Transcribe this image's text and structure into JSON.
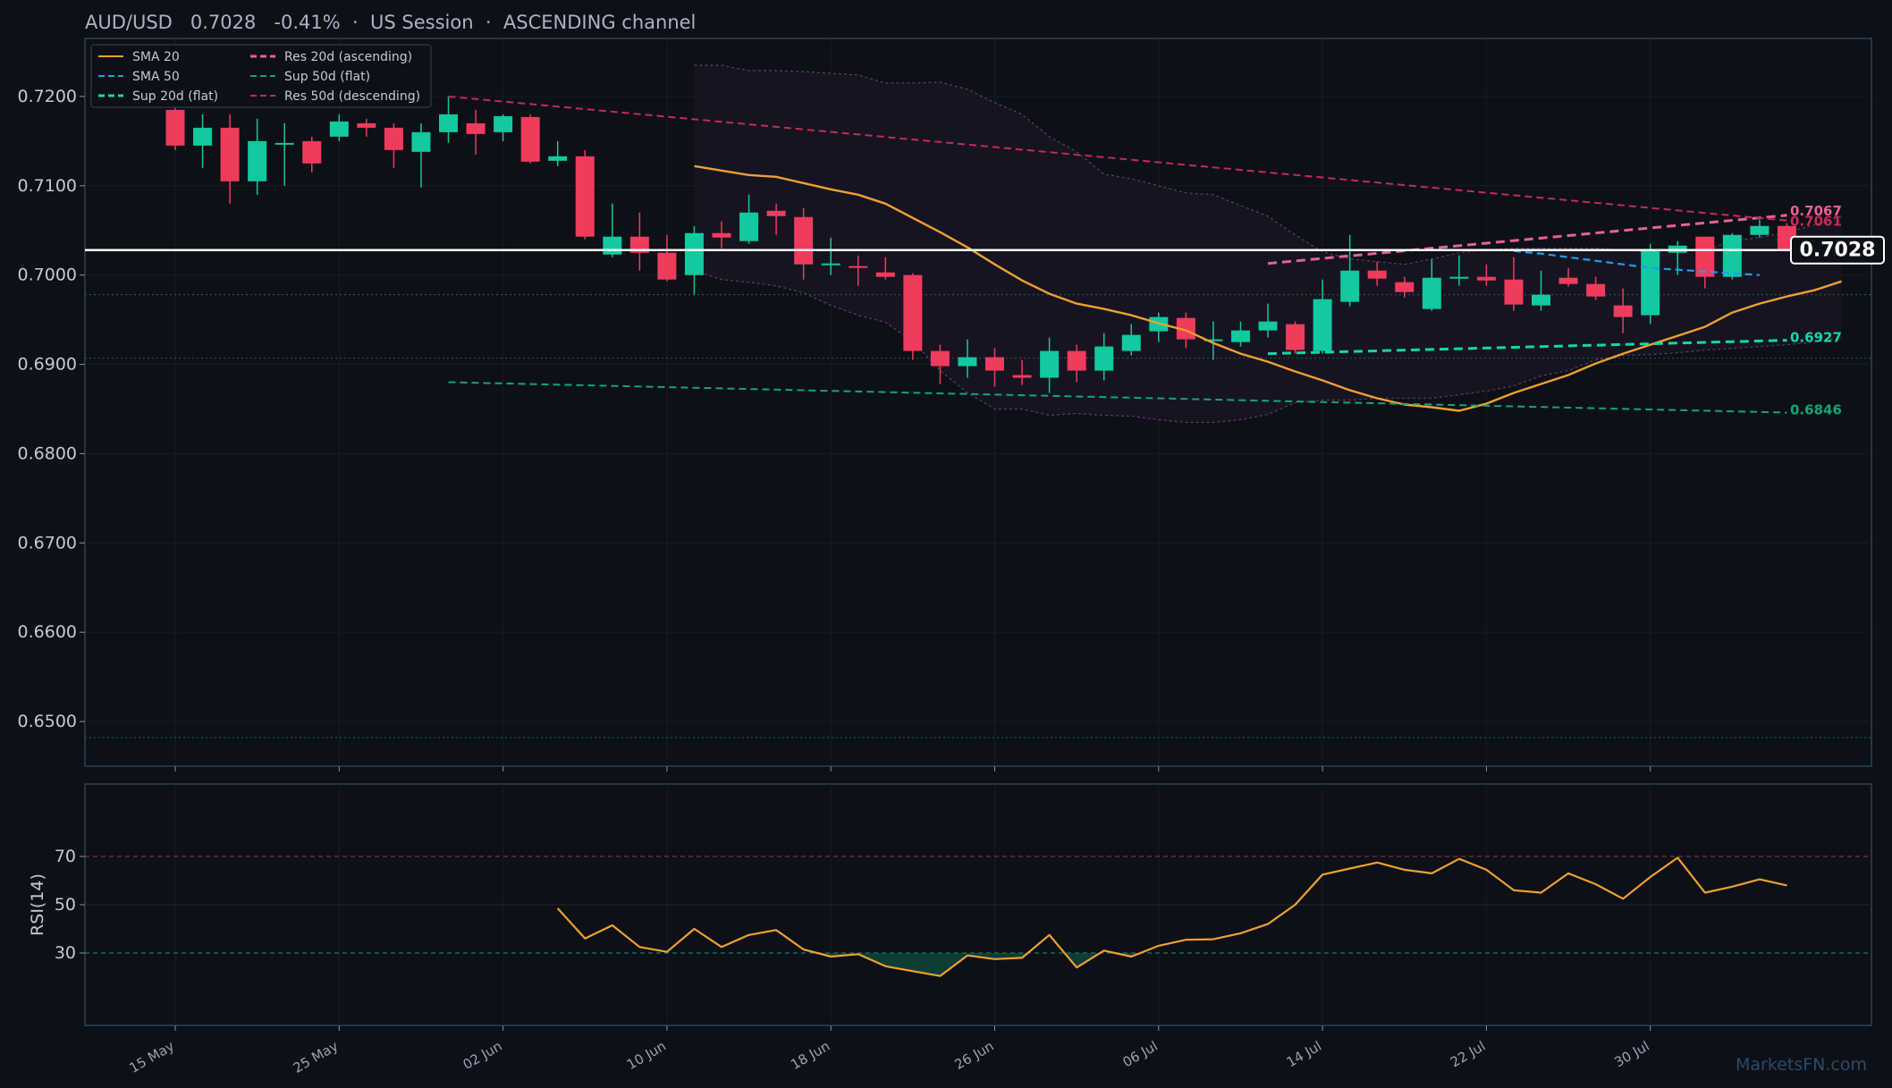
{
  "header": {
    "symbol": "AUD/USD",
    "price": "0.7028",
    "change": "-0.41%",
    "session": "US Session",
    "channel": "ASCENDING channel",
    "title": "AUD/USD   0.7028   -0.41%  ·  US Session  ·  ASCENDING channel"
  },
  "watermark": "MarketsFN.com",
  "colors": {
    "background": "#0d1017",
    "up": "#12c9a0",
    "down": "#ef3b5c",
    "sma20": "#f0a030",
    "sma50": "#1e9ef0",
    "res20": "#e8609a",
    "sup20": "#12d8a8",
    "sup50": "#12a678",
    "res50": "#c42a5a",
    "frame": "#2a4258",
    "last_price_line": "#ffffff"
  },
  "chart_data": [
    {
      "type": "candlestick",
      "title": "AUD/USD   0.7028   -0.41%  ·  US Session  ·  ASCENDING channel",
      "ylim": [
        0.645,
        0.7265
      ],
      "yticks": [
        0.65,
        0.66,
        0.67,
        0.68,
        0.69,
        0.7,
        0.71,
        0.72
      ],
      "ytick_labels": [
        "0.6500",
        "0.6600",
        "0.6700",
        "0.6800",
        "0.6900",
        "0.7000",
        "0.7100",
        "0.7200"
      ],
      "xticks": [
        "15 May",
        "25 May",
        "02 Jun",
        "10 Jun",
        "18 Jun",
        "26 Jun",
        "06 Jul",
        "14 Jul",
        "22 Jul",
        "30 Jul"
      ],
      "candles": [
        {
          "o": 0.7185,
          "h": 0.7215,
          "l": 0.714,
          "c": 0.7145
        },
        {
          "o": 0.7145,
          "h": 0.718,
          "l": 0.712,
          "c": 0.7165
        },
        {
          "o": 0.7165,
          "h": 0.718,
          "l": 0.708,
          "c": 0.7105
        },
        {
          "o": 0.7105,
          "h": 0.7175,
          "l": 0.709,
          "c": 0.715
        },
        {
          "o": 0.7148,
          "h": 0.717,
          "l": 0.71,
          "c": 0.7148
        },
        {
          "o": 0.715,
          "h": 0.7155,
          "l": 0.7115,
          "c": 0.7125
        },
        {
          "o": 0.7155,
          "h": 0.718,
          "l": 0.715,
          "c": 0.7172
        },
        {
          "o": 0.717,
          "h": 0.7175,
          "l": 0.7155,
          "c": 0.7165
        },
        {
          "o": 0.7165,
          "h": 0.717,
          "l": 0.712,
          "c": 0.714
        },
        {
          "o": 0.7138,
          "h": 0.717,
          "l": 0.7098,
          "c": 0.716
        },
        {
          "o": 0.716,
          "h": 0.72,
          "l": 0.7148,
          "c": 0.718
        },
        {
          "o": 0.717,
          "h": 0.7185,
          "l": 0.7135,
          "c": 0.7158
        },
        {
          "o": 0.716,
          "h": 0.718,
          "l": 0.715,
          "c": 0.7178
        },
        {
          "o": 0.7177,
          "h": 0.718,
          "l": 0.7125,
          "c": 0.7127
        },
        {
          "o": 0.7128,
          "h": 0.715,
          "l": 0.7122,
          "c": 0.7133
        },
        {
          "o": 0.7133,
          "h": 0.714,
          "l": 0.704,
          "c": 0.7043
        },
        {
          "o": 0.7023,
          "h": 0.708,
          "l": 0.702,
          "c": 0.7043
        },
        {
          "o": 0.7043,
          "h": 0.707,
          "l": 0.7005,
          "c": 0.7025
        },
        {
          "o": 0.7025,
          "h": 0.7045,
          "l": 0.6993,
          "c": 0.6995
        },
        {
          "o": 0.7,
          "h": 0.7055,
          "l": 0.6978,
          "c": 0.7047
        },
        {
          "o": 0.7047,
          "h": 0.706,
          "l": 0.703,
          "c": 0.7042
        },
        {
          "o": 0.7038,
          "h": 0.709,
          "l": 0.7035,
          "c": 0.707
        },
        {
          "o": 0.7072,
          "h": 0.708,
          "l": 0.7045,
          "c": 0.7066
        },
        {
          "o": 0.7065,
          "h": 0.7075,
          "l": 0.6995,
          "c": 0.7012
        },
        {
          "o": 0.7013,
          "h": 0.7042,
          "l": 0.7,
          "c": 0.7013
        },
        {
          "o": 0.701,
          "h": 0.7022,
          "l": 0.6988,
          "c": 0.7008
        },
        {
          "o": 0.7003,
          "h": 0.702,
          "l": 0.6995,
          "c": 0.6998
        },
        {
          "o": 0.7,
          "h": 0.7002,
          "l": 0.6905,
          "c": 0.6915
        },
        {
          "o": 0.6915,
          "h": 0.6922,
          "l": 0.6878,
          "c": 0.6898
        },
        {
          "o": 0.6898,
          "h": 0.6928,
          "l": 0.6885,
          "c": 0.6908
        },
        {
          "o": 0.6908,
          "h": 0.6918,
          "l": 0.6875,
          "c": 0.6893
        },
        {
          "o": 0.6888,
          "h": 0.6905,
          "l": 0.6877,
          "c": 0.6885
        },
        {
          "o": 0.6885,
          "h": 0.693,
          "l": 0.6868,
          "c": 0.6915
        },
        {
          "o": 0.6915,
          "h": 0.6922,
          "l": 0.688,
          "c": 0.6893
        },
        {
          "o": 0.6893,
          "h": 0.6935,
          "l": 0.6882,
          "c": 0.692
        },
        {
          "o": 0.6915,
          "h": 0.6945,
          "l": 0.691,
          "c": 0.6933
        },
        {
          "o": 0.6937,
          "h": 0.6958,
          "l": 0.6925,
          "c": 0.6953
        },
        {
          "o": 0.6952,
          "h": 0.6958,
          "l": 0.6918,
          "c": 0.6928
        },
        {
          "o": 0.6928,
          "h": 0.6948,
          "l": 0.6905,
          "c": 0.6928
        },
        {
          "o": 0.6925,
          "h": 0.6948,
          "l": 0.692,
          "c": 0.6938
        },
        {
          "o": 0.6938,
          "h": 0.6968,
          "l": 0.693,
          "c": 0.6948
        },
        {
          "o": 0.6945,
          "h": 0.6948,
          "l": 0.6912,
          "c": 0.6916
        },
        {
          "o": 0.6915,
          "h": 0.6995,
          "l": 0.6912,
          "c": 0.6973
        },
        {
          "o": 0.697,
          "h": 0.7045,
          "l": 0.6965,
          "c": 0.7005
        },
        {
          "o": 0.7005,
          "h": 0.7015,
          "l": 0.6988,
          "c": 0.6996
        },
        {
          "o": 0.6992,
          "h": 0.6998,
          "l": 0.6975,
          "c": 0.6981
        },
        {
          "o": 0.6962,
          "h": 0.7018,
          "l": 0.696,
          "c": 0.6997
        },
        {
          "o": 0.6998,
          "h": 0.7022,
          "l": 0.6988,
          "c": 0.6998
        },
        {
          "o": 0.6998,
          "h": 0.7012,
          "l": 0.6988,
          "c": 0.6994
        },
        {
          "o": 0.6995,
          "h": 0.702,
          "l": 0.696,
          "c": 0.6967
        },
        {
          "o": 0.6966,
          "h": 0.7005,
          "l": 0.696,
          "c": 0.6978
        },
        {
          "o": 0.6997,
          "h": 0.7008,
          "l": 0.6987,
          "c": 0.699
        },
        {
          "o": 0.699,
          "h": 0.6998,
          "l": 0.6972,
          "c": 0.6976
        },
        {
          "o": 0.6966,
          "h": 0.6985,
          "l": 0.6935,
          "c": 0.6953
        },
        {
          "o": 0.6955,
          "h": 0.7035,
          "l": 0.6945,
          "c": 0.7028
        },
        {
          "o": 0.7025,
          "h": 0.7038,
          "l": 0.7,
          "c": 0.7033
        },
        {
          "o": 0.7043,
          "h": 0.7043,
          "l": 0.6985,
          "c": 0.6998
        },
        {
          "o": 0.6998,
          "h": 0.7047,
          "l": 0.6995,
          "c": 0.7045
        },
        {
          "o": 0.7045,
          "h": 0.7062,
          "l": 0.7042,
          "c": 0.7055
        },
        {
          "o": 0.7055,
          "h": 0.7058,
          "l": 0.7028,
          "c": 0.7028
        }
      ],
      "series": [
        {
          "name": "SMA 20",
          "start_index": 19,
          "values": [
            0.7122,
            0.7117,
            0.7112,
            0.711,
            0.7103,
            0.7096,
            0.709,
            0.708,
            0.7064,
            0.7048,
            0.7031,
            0.7012,
            0.6994,
            0.6979,
            0.6968,
            0.6962,
            0.6955,
            0.6946,
            0.6938,
            0.6924,
            0.6912,
            0.6903,
            0.6892,
            0.6882,
            0.6871,
            0.6862,
            0.6855,
            0.6852,
            0.6848,
            0.6856,
            0.6868,
            0.6878,
            0.6888,
            0.6901,
            0.6912,
            0.6922,
            0.6932,
            0.6942,
            0.6958,
            0.6968,
            0.6976,
            0.6983,
            0.6993
          ]
        },
        {
          "name": "SMA 50",
          "start_index": 49,
          "values": [
            0.7027,
            0.7024,
            0.702,
            0.7016,
            0.7012,
            0.7008,
            0.7006,
            0.7004,
            0.7002,
            0.7
          ]
        },
        {
          "name": "Res 20d (ascending)",
          "x": [
            40,
            59
          ],
          "values": [
            0.7013,
            0.7067
          ]
        },
        {
          "name": "Sup 20d (flat)",
          "x": [
            40,
            59
          ],
          "values": [
            0.6912,
            0.6927
          ]
        },
        {
          "name": "Sup 50d (flat)",
          "x": [
            10,
            59
          ],
          "values": [
            0.688,
            0.6846
          ]
        },
        {
          "name": "Res 50d (descending)",
          "x": [
            10,
            59
          ],
          "values": [
            0.72,
            0.7061
          ]
        }
      ],
      "bollinger": {
        "start_index": 19,
        "upper": [
          0.7235,
          0.7235,
          0.7229,
          0.7229,
          0.7228,
          0.7226,
          0.7224,
          0.7215,
          0.7215,
          0.7216,
          0.7208,
          0.7193,
          0.718,
          0.7155,
          0.7138,
          0.7113,
          0.7108,
          0.71,
          0.7092,
          0.709,
          0.7078,
          0.7066,
          0.7045,
          0.7026,
          0.7018,
          0.7015,
          0.7012,
          0.7018,
          0.7025,
          0.7028,
          0.703,
          0.703,
          0.703,
          0.703,
          0.7028,
          0.7026,
          0.7028,
          0.7028,
          0.7038,
          0.7042,
          0.7048,
          0.7056,
          0.7066
        ],
        "lower": [
          0.7005,
          0.6995,
          0.6992,
          0.6988,
          0.698,
          0.6966,
          0.6955,
          0.6947,
          0.6926,
          0.6893,
          0.6868,
          0.685,
          0.685,
          0.6843,
          0.6845,
          0.6843,
          0.6842,
          0.6838,
          0.6835,
          0.6835,
          0.6838,
          0.6844,
          0.6857,
          0.686,
          0.686,
          0.6862,
          0.6862,
          0.6862,
          0.6866,
          0.687,
          0.6876,
          0.6887,
          0.6893,
          0.6905,
          0.691,
          0.6911,
          0.6913,
          0.6916,
          0.6918,
          0.692,
          0.6922,
          0.6925,
          0.693
        ]
      },
      "horizontal_levels": [
        0.6978,
        0.6907,
        0.6482
      ],
      "last_price": 0.7028,
      "last_price_label": "0.7028",
      "level_labels": [
        {
          "text": "0.7067",
          "value": 0.7067,
          "color": "#e8609a"
        },
        {
          "text": "0.7061",
          "value": 0.7061,
          "color": "#c42a5a"
        },
        {
          "text": "0.6927",
          "value": 0.6927,
          "color": "#12d8a8"
        },
        {
          "text": "0.6846",
          "value": 0.6846,
          "color": "#12a678"
        }
      ],
      "legend": {
        "position": "top-left",
        "items": [
          {
            "label": "SMA 20",
            "color": "#f0a030",
            "dash": "solid"
          },
          {
            "label": "SMA 50",
            "color": "#1e9ef0",
            "dash": "dashed"
          },
          {
            "label": "Sup 20d (flat)",
            "color": "#12d8a8",
            "dash": "dashed"
          },
          {
            "label": "Res 20d (ascending)",
            "color": "#e8609a",
            "dash": "dashed"
          },
          {
            "label": "Sup 50d (flat)",
            "color": "#12a678",
            "dash": "dashed"
          },
          {
            "label": "Res 50d (descending)",
            "color": "#c42a5a",
            "dash": "dashed"
          }
        ]
      }
    },
    {
      "type": "line",
      "ylabel": "RSI(14)",
      "ylim": [
        0,
        100
      ],
      "yticks": [
        30,
        50,
        70
      ],
      "ytick_labels": [
        "30",
        "50",
        "70"
      ],
      "overbought": 70,
      "oversold": 30,
      "start_index": 14,
      "values": [
        48.5,
        36,
        41.5,
        32.5,
        30.5,
        40,
        32.5,
        37.5,
        39.5,
        31.5,
        28.5,
        29.5,
        24.5,
        22.5,
        20.5,
        29,
        27.5,
        28,
        37.5,
        24,
        31,
        28.5,
        33,
        35.5,
        35.7,
        38.2,
        42,
        50,
        62.5,
        65,
        67.5,
        64.5,
        63,
        69,
        64.5,
        56,
        55,
        63,
        58.5,
        52.5,
        61.5,
        69.5,
        55,
        57.5,
        60.5,
        58
      ]
    }
  ]
}
